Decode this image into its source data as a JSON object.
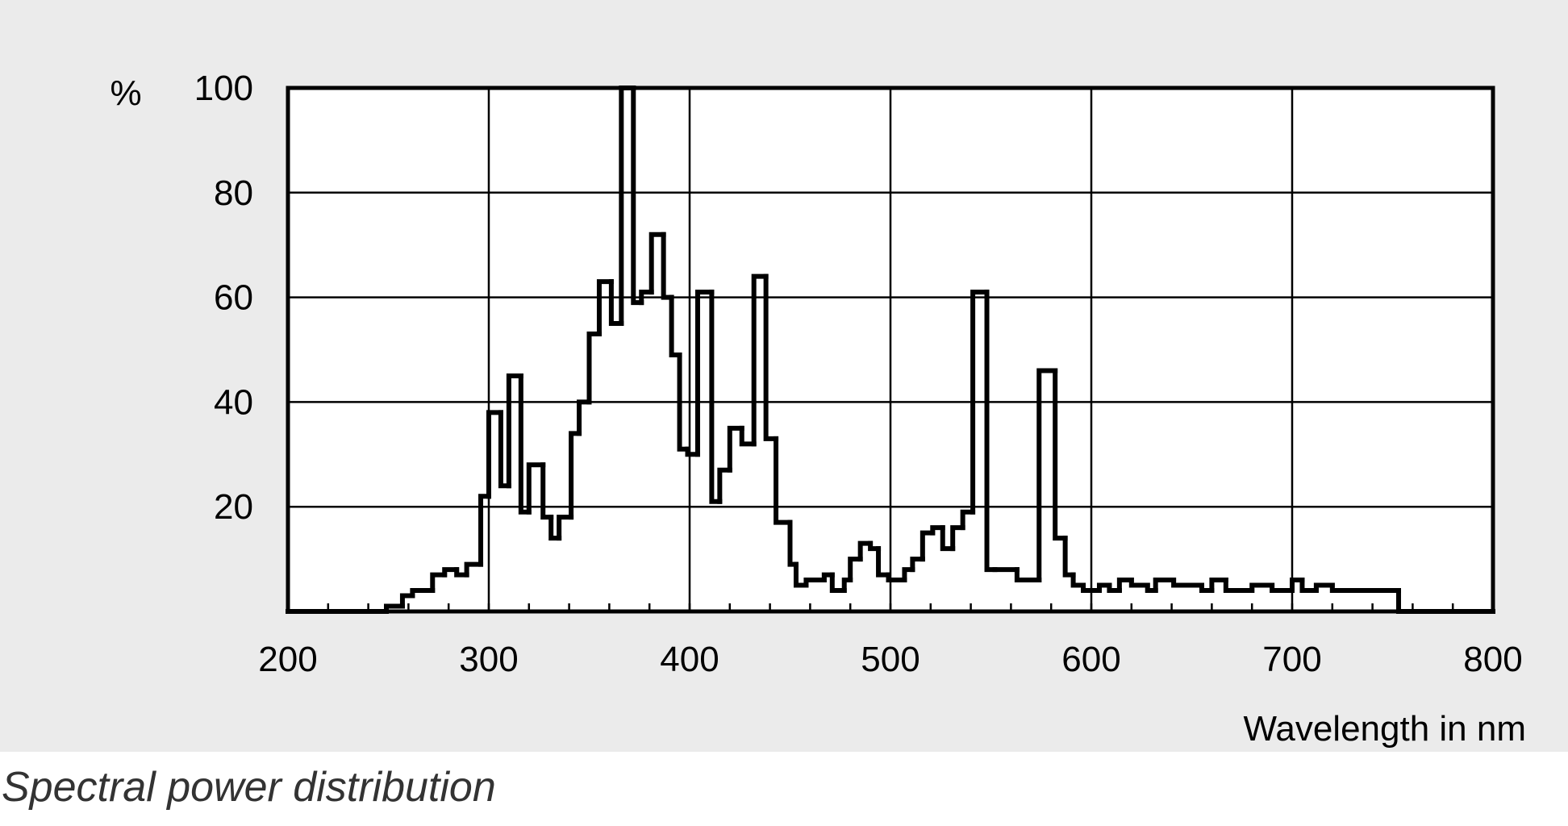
{
  "chart_data": {
    "type": "histogram",
    "caption": "Spectral power distribution",
    "xlabel": "Wavelength in nm",
    "ylabel": "%",
    "bins": [
      200,
      249,
      257,
      262,
      272,
      278,
      284,
      289,
      296,
      300,
      306,
      310,
      316,
      320,
      327,
      331,
      335,
      341,
      345,
      350,
      355,
      361,
      366,
      372,
      376,
      381,
      387,
      391,
      395,
      399,
      404,
      411,
      415,
      420,
      426,
      432,
      438,
      443,
      450,
      453,
      458,
      467,
      471,
      477,
      480,
      485,
      490,
      494,
      499,
      507,
      511,
      516,
      521,
      526,
      531,
      536,
      541,
      548,
      552,
      563,
      574,
      582,
      587,
      591,
      596,
      604,
      609,
      614,
      620,
      628,
      632,
      641,
      648,
      655,
      660,
      667,
      675,
      680,
      690,
      700,
      705,
      712,
      720,
      753,
      800
    ],
    "values": [
      0,
      1,
      3,
      4,
      7,
      8,
      7,
      9,
      22,
      38,
      24,
      45,
      19,
      28,
      18,
      14,
      18,
      34,
      40,
      53,
      63,
      55,
      100,
      59,
      61,
      72,
      60,
      49,
      31,
      30,
      61,
      21,
      27,
      35,
      32,
      64,
      33,
      17,
      9,
      5,
      6,
      7,
      4,
      6,
      10,
      13,
      12,
      7,
      6,
      8,
      10,
      15,
      16,
      12,
      16,
      19,
      61,
      8,
      8,
      6,
      46,
      14,
      7,
      5,
      4,
      5,
      4,
      6,
      5,
      4,
      6,
      5,
      5,
      4,
      6,
      4,
      4,
      5,
      4,
      6,
      4,
      5,
      4,
      0
    ],
    "color": "#000000",
    "xlim": [
      200,
      800
    ],
    "xticks": [
      200,
      300,
      400,
      500,
      600,
      700,
      800
    ],
    "ylim": [
      0,
      100
    ],
    "yticks": [
      20,
      40,
      60,
      80,
      100
    ],
    "grid": true
  }
}
